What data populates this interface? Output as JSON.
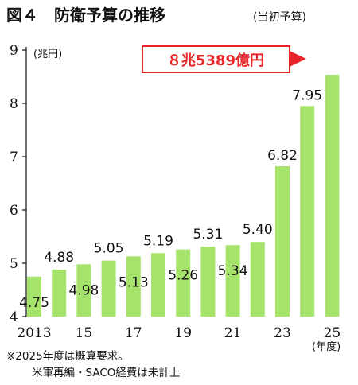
{
  "header": {
    "title": "図４　防衛予算の推移",
    "subtitle": "(当初予算)"
  },
  "chart_data": {
    "type": "bar",
    "categories": [
      "2013",
      "14",
      "15",
      "16",
      "17",
      "18",
      "19",
      "20",
      "21",
      "22",
      "23",
      "24",
      "25"
    ],
    "x_tick_labels": [
      "2013",
      "15",
      "17",
      "19",
      "21",
      "23",
      "25"
    ],
    "x_unit": "(年度)",
    "values": [
      4.75,
      4.88,
      4.98,
      5.05,
      5.13,
      5.19,
      5.26,
      5.31,
      5.34,
      5.4,
      6.82,
      7.95,
      8.5389
    ],
    "value_labels": [
      "4.75",
      "4.88",
      "4.98",
      "5.05",
      "5.13",
      "5.19",
      "5.26",
      "5.31",
      "5.34",
      "5.40",
      "6.82",
      "7.95",
      ""
    ],
    "ylim": [
      4,
      9
    ],
    "y_ticks": [
      "4",
      "5",
      "6",
      "7",
      "8",
      "9"
    ],
    "ylabel": "(兆円)",
    "callout": "８兆5389億円",
    "bar_color": "#a6e36b",
    "callout_color": "#e8262a",
    "grid": false
  },
  "notes": {
    "line1": "※2025年度は概算要求。",
    "line2": "米軍再編・SACO経費は未計上"
  }
}
